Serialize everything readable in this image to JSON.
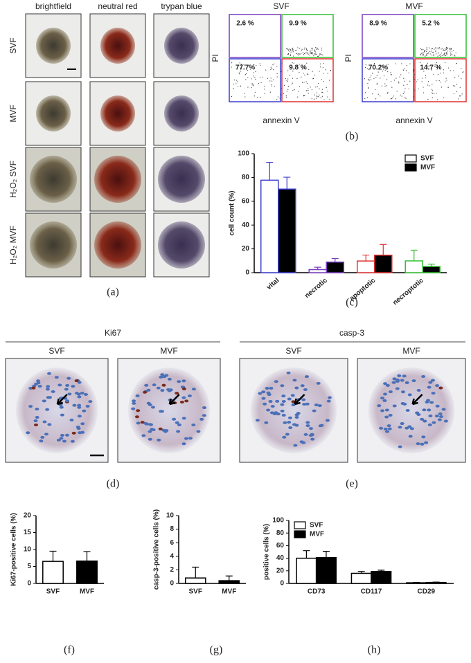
{
  "figure": {
    "panel_a": {
      "columns": [
        "brightfield",
        "neutral red",
        "trypan blue"
      ],
      "rows": [
        "SVF",
        "MVF",
        "H₂O₂ SVF",
        "H₂O₂ MVF"
      ],
      "caption": "(a)"
    },
    "panel_b": {
      "plots": [
        {
          "title": "SVF",
          "quadrants": [
            "2.6 %",
            "9.9 %",
            "77.7%",
            "9.8 %"
          ]
        },
        {
          "title": "MVF",
          "quadrants": [
            "8.9 %",
            "5.2 %",
            "70.2%",
            "14.7 %"
          ]
        }
      ],
      "y_label": "PI",
      "x_label": "annexin V",
      "caption": "(b)"
    },
    "panel_d": {
      "title": "Ki67",
      "images": [
        "SVF",
        "MVF"
      ],
      "caption": "(d)"
    },
    "panel_e": {
      "title": "casp-3",
      "images": [
        "SVF",
        "MVF"
      ],
      "caption": "(e)"
    },
    "captions": [
      "(c)",
      "(f)",
      "(g)",
      "(h)"
    ]
  },
  "chart_data": [
    {
      "type": "bar",
      "y_label": "cell count (%)",
      "categories": [
        "vital",
        "necrotic",
        "apoptotic",
        "necroptotic"
      ],
      "series": [
        {
          "name": "SVF",
          "color": "#ffffff",
          "values": [
            77.7,
            2.6,
            9.8,
            9.9
          ],
          "errors": [
            15,
            2,
            5,
            9
          ]
        },
        {
          "name": "MVF",
          "color": "#000000",
          "values": [
            70.2,
            8.9,
            14.7,
            5.2
          ],
          "errors": [
            10,
            3,
            9,
            2
          ]
        }
      ],
      "edge_colors": [
        "#3c3cd0",
        "#7a3cc0",
        "#e03030",
        "#30c030"
      ],
      "ylim": [
        0,
        100
      ],
      "yticks": [
        0,
        20,
        40,
        60,
        80,
        100
      ],
      "legend": "upper right"
    },
    {
      "type": "bar",
      "y_label": "Ki67-positive cells (%)",
      "categories": [
        "SVF",
        "MVF"
      ],
      "values": [
        6.5,
        6.6
      ],
      "errors": [
        3,
        2.8
      ],
      "colors": [
        "#ffffff",
        "#000000"
      ],
      "ylim": [
        0,
        20
      ],
      "yticks": [
        0,
        5,
        10,
        15,
        20
      ]
    },
    {
      "type": "bar",
      "y_label": "casp-3-positive cells (%)",
      "categories": [
        "SVF",
        "MVF"
      ],
      "values": [
        0.8,
        0.4
      ],
      "errors": [
        1.6,
        0.7
      ],
      "colors": [
        "#ffffff",
        "#000000"
      ],
      "ylim": [
        0,
        10
      ],
      "yticks": [
        0,
        2,
        4,
        6,
        8,
        10
      ]
    },
    {
      "type": "bar",
      "y_label": "positive cells (%)",
      "categories": [
        "CD73",
        "CD117",
        "CD29"
      ],
      "series": [
        {
          "name": "SVF",
          "color": "#ffffff",
          "values": [
            40,
            16,
            1
          ],
          "errors": [
            12,
            3,
            0.5
          ]
        },
        {
          "name": "MVF",
          "color": "#000000",
          "values": [
            41,
            19,
            1.5
          ],
          "errors": [
            10,
            2,
            0.6
          ]
        }
      ],
      "ylim": [
        0,
        100
      ],
      "yticks": [
        0,
        20,
        40,
        60,
        80,
        100
      ],
      "legend": "upper left"
    }
  ]
}
